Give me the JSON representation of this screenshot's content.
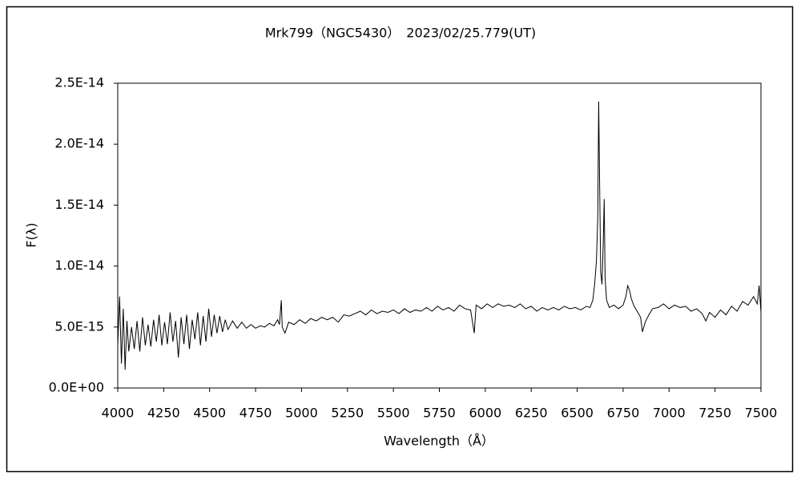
{
  "chart_data": {
    "type": "line",
    "title": "Mrk799（NGC5430）　2023/02/25.779(UT)",
    "x_label": "Wavelength（Å）",
    "y_label": "F(λ)",
    "color": "#000000",
    "grid": false,
    "xlim": [
      4000,
      7500
    ],
    "xticks": [
      4000,
      4250,
      4500,
      4750,
      5000,
      5250,
      5500,
      5750,
      6000,
      6250,
      6500,
      6750,
      7000,
      7250,
      7500
    ],
    "ylim": [
      0,
      2.5e-14
    ],
    "yticks": [
      {
        "value": 0,
        "label": "0.0E+00"
      },
      {
        "value": 5e-15,
        "label": "5.0E-15"
      },
      {
        "value": 1e-14,
        "label": "1.0E-14"
      },
      {
        "value": 1.5e-14,
        "label": "1.5E-14"
      },
      {
        "value": 2e-14,
        "label": "2.0E-14"
      },
      {
        "value": 2.5e-14,
        "label": "2.5E-14"
      }
    ],
    "x": [
      4000,
      4010,
      4020,
      4030,
      4040,
      4050,
      4060,
      4075,
      4090,
      4105,
      4120,
      4135,
      4150,
      4165,
      4180,
      4195,
      4210,
      4225,
      4240,
      4255,
      4270,
      4285,
      4300,
      4315,
      4330,
      4345,
      4360,
      4375,
      4390,
      4405,
      4420,
      4435,
      4450,
      4465,
      4480,
      4495,
      4510,
      4525,
      4540,
      4555,
      4570,
      4585,
      4600,
      4625,
      4650,
      4675,
      4700,
      4725,
      4750,
      4775,
      4800,
      4825,
      4850,
      4870,
      4880,
      4890,
      4895,
      4910,
      4930,
      4960,
      4990,
      5020,
      5050,
      5080,
      5110,
      5140,
      5170,
      5200,
      5230,
      5260,
      5290,
      5320,
      5350,
      5380,
      5410,
      5440,
      5470,
      5500,
      5530,
      5560,
      5590,
      5620,
      5650,
      5680,
      5710,
      5740,
      5770,
      5800,
      5830,
      5860,
      5890,
      5920,
      5940,
      5950,
      5980,
      6010,
      6040,
      6070,
      6100,
      6130,
      6160,
      6190,
      6220,
      6250,
      6280,
      6310,
      6340,
      6370,
      6400,
      6430,
      6460,
      6490,
      6520,
      6550,
      6570,
      6585,
      6595,
      6605,
      6612,
      6617,
      6622,
      6628,
      6635,
      6642,
      6647,
      6652,
      6660,
      6675,
      6700,
      6725,
      6750,
      6765,
      6775,
      6785,
      6795,
      6810,
      6830,
      6845,
      6855,
      6870,
      6890,
      6910,
      6940,
      6970,
      7000,
      7030,
      7060,
      7090,
      7120,
      7150,
      7180,
      7200,
      7220,
      7250,
      7280,
      7310,
      7340,
      7370,
      7400,
      7430,
      7460,
      7480,
      7490,
      7500
    ],
    "values": [
      3.5e-15,
      7.5e-15,
      2e-15,
      6.5e-15,
      1.5e-15,
      5.5e-15,
      3e-15,
      5e-15,
      3.2e-15,
      5.5e-15,
      3e-15,
      5.8e-15,
      3.5e-15,
      5.2e-15,
      3.4e-15,
      5.6e-15,
      3.8e-15,
      6e-15,
      3.5e-15,
      5.4e-15,
      3.6e-15,
      6.2e-15,
      3.8e-15,
      5.5e-15,
      2.5e-15,
      5.8e-15,
      3.6e-15,
      6e-15,
      3.2e-15,
      5.6e-15,
      4e-15,
      6.2e-15,
      3.5e-15,
      5.9e-15,
      3.8e-15,
      6.5e-15,
      4.2e-15,
      6e-15,
      4.5e-15,
      5.9e-15,
      4.6e-15,
      5.6e-15,
      4.8e-15,
      5.5e-15,
      4.9e-15,
      5.4e-15,
      4.9e-15,
      5.2e-15,
      4.9e-15,
      5.1e-15,
      5e-15,
      5.3e-15,
      5.1e-15,
      5.6e-15,
      5.2e-15,
      7.2e-15,
      5e-15,
      4.5e-15,
      5.4e-15,
      5.2e-15,
      5.6e-15,
      5.3e-15,
      5.7e-15,
      5.5e-15,
      5.8e-15,
      5.6e-15,
      5.8e-15,
      5.4e-15,
      6e-15,
      5.9e-15,
      6.1e-15,
      6.3e-15,
      6e-15,
      6.4e-15,
      6.1e-15,
      6.3e-15,
      6.2e-15,
      6.4e-15,
      6.1e-15,
      6.5e-15,
      6.2e-15,
      6.4e-15,
      6.3e-15,
      6.6e-15,
      6.3e-15,
      6.7e-15,
      6.4e-15,
      6.6e-15,
      6.3e-15,
      6.8e-15,
      6.5e-15,
      6.4e-15,
      4.5e-15,
      6.8e-15,
      6.5e-15,
      6.9e-15,
      6.6e-15,
      6.9e-15,
      6.7e-15,
      6.8e-15,
      6.6e-15,
      6.9e-15,
      6.5e-15,
      6.7e-15,
      6.3e-15,
      6.6e-15,
      6.4e-15,
      6.6e-15,
      6.4e-15,
      6.7e-15,
      6.5e-15,
      6.6e-15,
      6.4e-15,
      6.7e-15,
      6.6e-15,
      7.2e-15,
      8.5e-15,
      1.05e-14,
      1.4e-14,
      2.35e-14,
      1.7e-14,
      9.5e-15,
      8.5e-15,
      1.2e-14,
      1.55e-14,
      9e-15,
      7.2e-15,
      6.6e-15,
      6.8e-15,
      6.5e-15,
      6.8e-15,
      7.5e-15,
      8.4e-15,
      8e-15,
      7.3e-15,
      6.7e-15,
      6.2e-15,
      5.8e-15,
      4.6e-15,
      5.4e-15,
      6e-15,
      6.5e-15,
      6.6e-15,
      6.9e-15,
      6.5e-15,
      6.8e-15,
      6.6e-15,
      6.7e-15,
      6.3e-15,
      6.5e-15,
      6.1e-15,
      5.5e-15,
      6.2e-15,
      5.8e-15,
      6.4e-15,
      6e-15,
      6.7e-15,
      6.3e-15,
      7.1e-15,
      6.8e-15,
      7.5e-15,
      6.9e-15,
      8.4e-15,
      6.2e-15
    ]
  }
}
